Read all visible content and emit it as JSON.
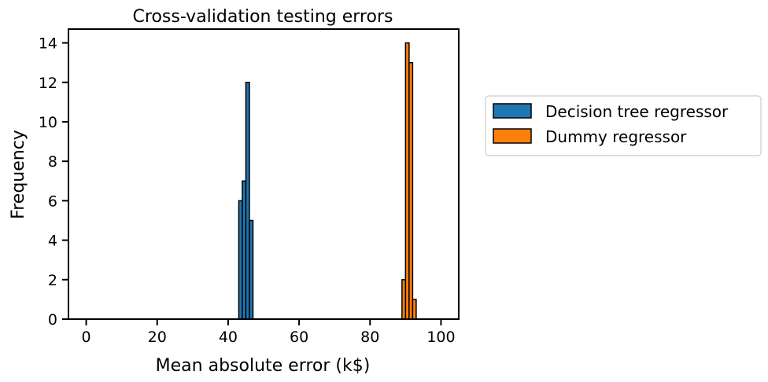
{
  "chart_data": {
    "type": "bar",
    "title": "Cross-validation testing errors",
    "xlabel": "Mean absolute error (k$)",
    "ylabel": "Frequency",
    "xlim": [
      -5,
      105
    ],
    "ylim": [
      0,
      14.7
    ],
    "xticks": [
      0,
      20,
      40,
      60,
      80,
      100
    ],
    "yticks": [
      0,
      2,
      4,
      6,
      8,
      10,
      12,
      14
    ],
    "grid": false,
    "legend_position": "right-outside",
    "bin_width": 1,
    "series": [
      {
        "name": "Decision tree regressor",
        "color": "#1f77b4",
        "bins": [
          {
            "x0": 43,
            "x1": 44,
            "count": 6
          },
          {
            "x0": 44,
            "x1": 45,
            "count": 7
          },
          {
            "x0": 45,
            "x1": 46,
            "count": 12
          },
          {
            "x0": 46,
            "x1": 47,
            "count": 5
          }
        ]
      },
      {
        "name": "Dummy regressor",
        "color": "#ff7f0e",
        "bins": [
          {
            "x0": 89,
            "x1": 90,
            "count": 2
          },
          {
            "x0": 90,
            "x1": 91,
            "count": 14
          },
          {
            "x0": 91,
            "x1": 92,
            "count": 13
          },
          {
            "x0": 92,
            "x1": 93,
            "count": 1
          }
        ]
      }
    ]
  }
}
